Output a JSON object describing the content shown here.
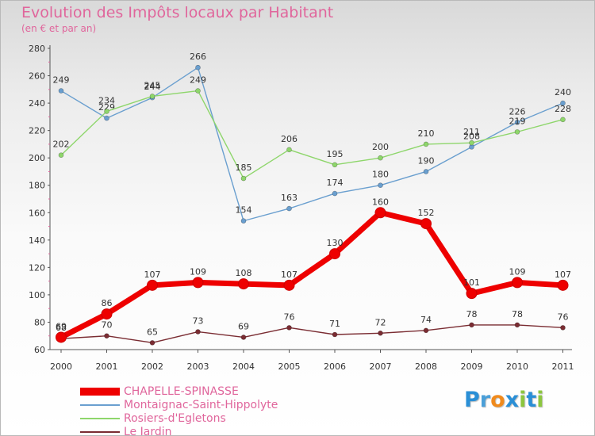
{
  "header": {
    "title": "Evolution des Impôts locaux par Habitant",
    "subtitle": "(en € et par an)"
  },
  "chart_data": {
    "type": "line",
    "title": "Evolution des Impôts locaux par Habitant",
    "subtitle": "(en € et par an)",
    "xlabel": "",
    "ylabel": "",
    "categories": [
      "2000",
      "2001",
      "2002",
      "2003",
      "2004",
      "2005",
      "2006",
      "2007",
      "2008",
      "2009",
      "2010",
      "2011"
    ],
    "ylim": [
      60,
      280
    ],
    "yticks": [
      60,
      80,
      100,
      120,
      140,
      160,
      180,
      200,
      220,
      240,
      260,
      280
    ],
    "grid": false,
    "legend_position": "bottom-left",
    "series": [
      {
        "name": "CHAPELLE-SPINASSE",
        "color": "#ee0000",
        "thick": true,
        "values": [
          69,
          86,
          107,
          109,
          108,
          107,
          130,
          160,
          152,
          101,
          109,
          107
        ]
      },
      {
        "name": "Montaignac-Saint-Hippolyte",
        "color": "#6a9fcf",
        "thick": false,
        "values": [
          249,
          229,
          244,
          266,
          154,
          163,
          174,
          180,
          190,
          208,
          226,
          240
        ]
      },
      {
        "name": "Rosiers-d'Egletons",
        "color": "#8ed66b",
        "thick": false,
        "values": [
          202,
          234,
          245,
          249,
          185,
          206,
          195,
          200,
          210,
          211,
          219,
          228
        ]
      },
      {
        "name": "Le Jardin",
        "color": "#7a2c32",
        "thick": false,
        "values": [
          68,
          70,
          65,
          73,
          69,
          76,
          71,
          72,
          74,
          78,
          78,
          76
        ]
      }
    ]
  },
  "logo": {
    "letters": [
      "P",
      "r",
      "o",
      "x",
      "i",
      "t",
      "i"
    ],
    "colors": [
      "#2a8fd6",
      "#4a9fd8",
      "#f08a1c",
      "#2a8fd6",
      "#8cc63f",
      "#2a8fd6",
      "#8cc63f"
    ]
  }
}
